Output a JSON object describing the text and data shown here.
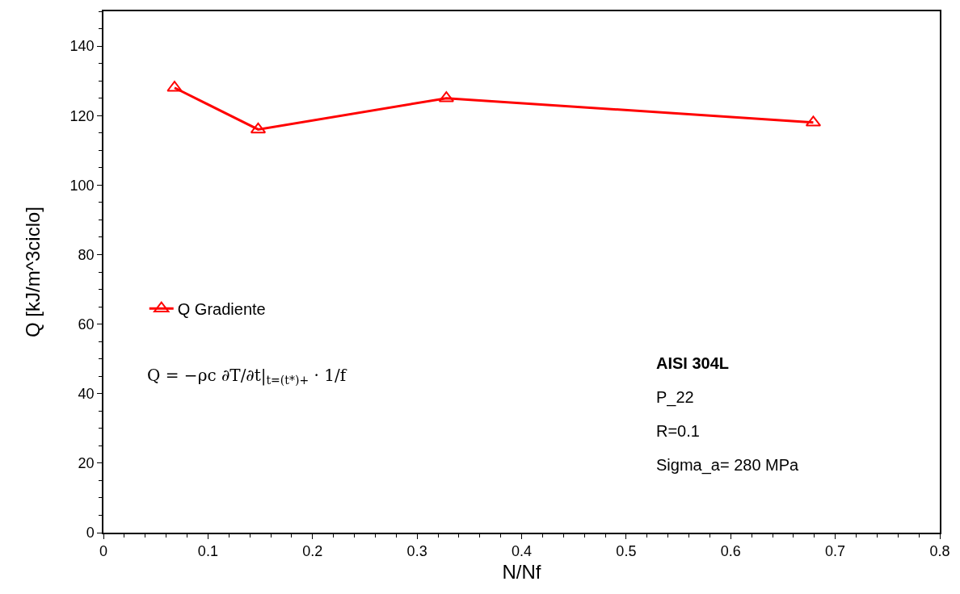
{
  "chart_data": {
    "type": "line",
    "xlabel": "N/Nf",
    "ylabel": "Q [kJ/m^3ciclo]",
    "x": [
      0.068,
      0.148,
      0.328,
      0.679
    ],
    "series": [
      {
        "name": "Q Gradiente",
        "color": "#ff0000",
        "values": [
          128,
          116,
          125,
          118
        ]
      }
    ],
    "xlim": [
      0,
      0.8
    ],
    "xticks": [
      0,
      0.1,
      0.2,
      0.3,
      0.4,
      0.5,
      0.6,
      0.7,
      0.8
    ],
    "ylim": [
      0,
      150
    ],
    "yticks": [
      0,
      20,
      40,
      60,
      80,
      100,
      120,
      140
    ],
    "grid": false,
    "legend": "left",
    "marker": "triangle",
    "line_style": "solid",
    "annotations": [
      "Q = −ρc ∂T/∂t|$_{t=(t*)+}$ · 1/f",
      "AISI 304L",
      "P_22",
      "R=0.1",
      "Sigma_a= 280 MPa"
    ]
  }
}
